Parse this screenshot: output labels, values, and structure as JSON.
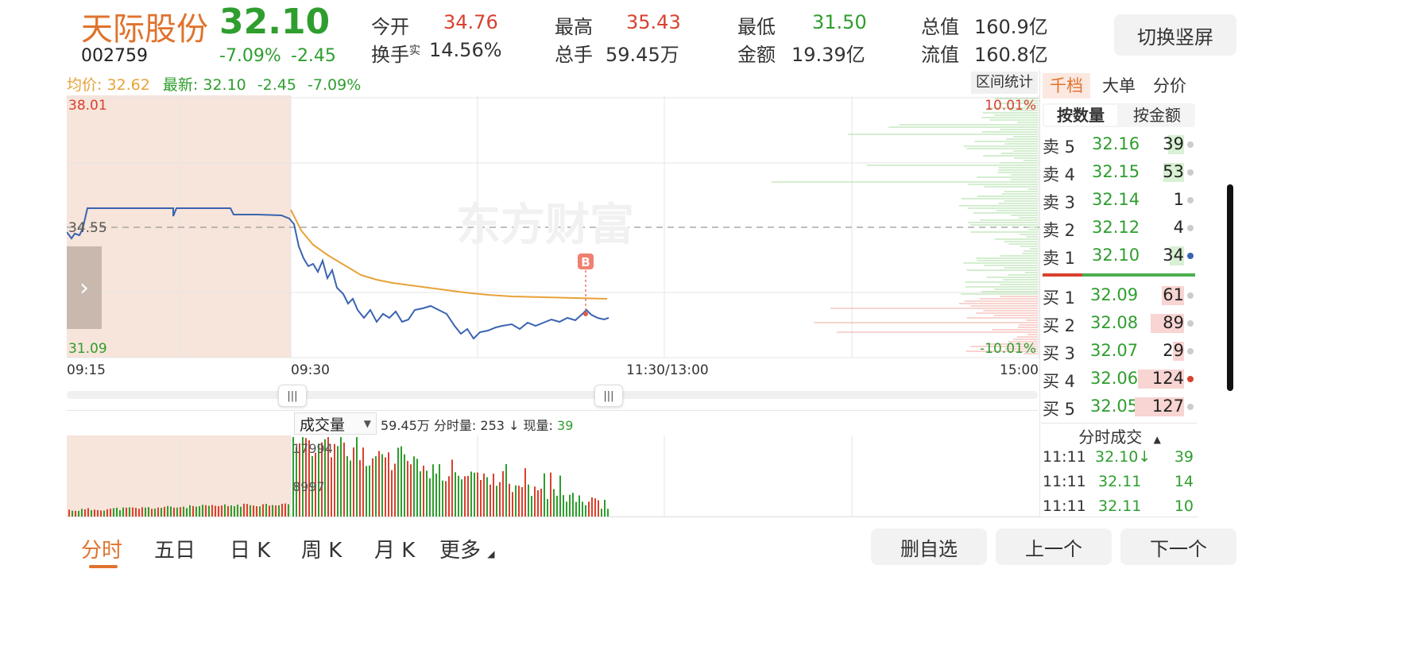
{
  "header": {
    "stock_name": "天际股份",
    "price": "32.10",
    "code": "002759",
    "change_pct": "-7.09%",
    "change_amt": "-2.45",
    "stats": [
      {
        "label": "今开",
        "value": "34.76"
      },
      {
        "label": "最高",
        "value": "35.43"
      },
      {
        "label": "最低",
        "value": "31.50"
      },
      {
        "label": "总值",
        "value": "160.9亿"
      },
      {
        "label": "换手",
        "label_sup": "实",
        "value": "14.56%"
      },
      {
        "label": "总手",
        "value": "59.45万"
      },
      {
        "label": "金额",
        "value": "19.39亿"
      },
      {
        "label": "流值",
        "value": "160.8亿"
      }
    ],
    "switch_button": "切换竖屏"
  },
  "legend": {
    "avg_label": "均价:",
    "avg_value": "32.62",
    "latest_label": "最新:",
    "latest_value": "32.10",
    "latest_change": "-2.45",
    "latest_pct": "-7.09%"
  },
  "range_stats_button": "区间统计",
  "price_chart": {
    "y_top": "38.01",
    "y_bottom": "31.09",
    "pct_top": "10.01%",
    "pct_bottom": "-10.01%",
    "prev_close_label": "34.55",
    "time_labels": [
      "09:15",
      "09:30",
      "11:30/13:00",
      "15:00"
    ],
    "marker_label": "B",
    "watermark": "东方财富",
    "expand_arrow": "›"
  },
  "slider_handle_glyph": "|||",
  "volume_bar": {
    "dropdown_label": "成交量",
    "total": "59.45万",
    "fenshi_label": "分时量:",
    "fenshi_value": "253",
    "arrow": "↓",
    "current_label": "现量:",
    "current_value": "39",
    "scale_top": "17994",
    "scale_mid": "8997"
  },
  "side_panel": {
    "tabs": [
      "千档",
      "大单",
      "分价"
    ],
    "subtabs": [
      "按数量",
      "按金额"
    ],
    "sells": [
      {
        "label": "卖 5",
        "price": "32.16",
        "vol": "39"
      },
      {
        "label": "卖 4",
        "price": "32.15",
        "vol": "53"
      },
      {
        "label": "卖 3",
        "price": "32.14",
        "vol": "1"
      },
      {
        "label": "卖 2",
        "price": "32.12",
        "vol": "4"
      },
      {
        "label": "卖 1",
        "price": "32.10",
        "vol": "34"
      }
    ],
    "buys": [
      {
        "label": "买 1",
        "price": "32.09",
        "vol": "61"
      },
      {
        "label": "买 2",
        "price": "32.08",
        "vol": "89"
      },
      {
        "label": "买 3",
        "price": "32.07",
        "vol": "29"
      },
      {
        "label": "买 4",
        "price": "32.06",
        "vol": "124"
      },
      {
        "label": "买 5",
        "price": "32.05",
        "vol": "127"
      }
    ],
    "trades_title": "分时成交",
    "trades_arrow": "▲",
    "trades": [
      {
        "time": "11:11",
        "price": "32.10↓",
        "vol": "39"
      },
      {
        "time": "11:11",
        "price": "32.11",
        "vol": "14"
      },
      {
        "time": "11:11",
        "price": "32.11",
        "vol": "10"
      }
    ]
  },
  "bottom_tabs": [
    "分时",
    "五日",
    "日 K",
    "周 K",
    "月 K",
    "更多"
  ],
  "bottom_buttons": [
    "删自选",
    "上一个",
    "下一个"
  ],
  "colors": {
    "up": "#d8412f",
    "down": "#2e9e2e",
    "accent": "#e0732d",
    "price_line": "#3a64b0",
    "avg_line": "#e8a23a"
  }
}
